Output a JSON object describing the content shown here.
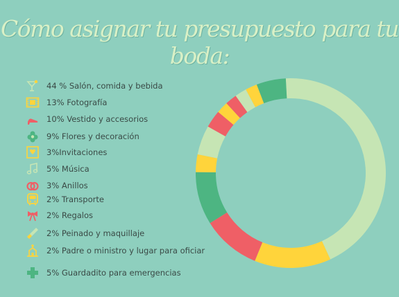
{
  "title": "Cómo asignar tu presupuesto para tu boda:",
  "colors": {
    "background": "#8ecfbe",
    "title": "#d9f0c6",
    "light_green": "#c6e5b4",
    "yellow": "#ffd43b",
    "red": "#ef5f66",
    "green": "#4db582"
  },
  "legend": [
    {
      "label": "44 % Salón, comida y bebida",
      "icon": "cocktail-icon"
    },
    {
      "label": "13% Fotografía",
      "icon": "film-icon"
    },
    {
      "label": "10% Vestido y accesorios",
      "icon": "shoe-icon"
    },
    {
      "label": "9% Flores y decoración",
      "icon": "flower-icon"
    },
    {
      "label": "3%Invitaciones",
      "icon": "invitation-icon"
    },
    {
      "label": "5% Música",
      "icon": "music-note-icon"
    },
    {
      "label": "3% Anillos",
      "icon": "rings-icon"
    },
    {
      "label": "2% Transporte",
      "icon": "bus-icon"
    },
    {
      "label": "2% Regalos",
      "icon": "bow-icon"
    },
    {
      "label": "2% Peinado y maquillaje",
      "icon": "brush-icon"
    },
    {
      "label": "2% Padre o ministro y lugar para oficiar",
      "icon": "church-icon"
    },
    {
      "label": "5% Guardadito para emergencias",
      "icon": "cross-icon"
    }
  ],
  "chart_data": {
    "type": "pie",
    "donut": true,
    "segments": [
      {
        "value": 44,
        "color": "#c6e5b4"
      },
      {
        "value": 13,
        "color": "#ffd43b"
      },
      {
        "value": 10,
        "color": "#ef5f66"
      },
      {
        "value": 9,
        "color": "#4db582"
      },
      {
        "value": 3,
        "color": "#ffd43b"
      },
      {
        "value": 5,
        "color": "#c6e5b4"
      },
      {
        "value": 3,
        "color": "#ef5f66"
      },
      {
        "value": 2,
        "color": "#ffd43b"
      },
      {
        "value": 2,
        "color": "#ef5f66"
      },
      {
        "value": 2,
        "color": "#c6e5b4"
      },
      {
        "value": 2,
        "color": "#ffd43b"
      },
      {
        "value": 5,
        "color": "#4db582"
      }
    ]
  }
}
